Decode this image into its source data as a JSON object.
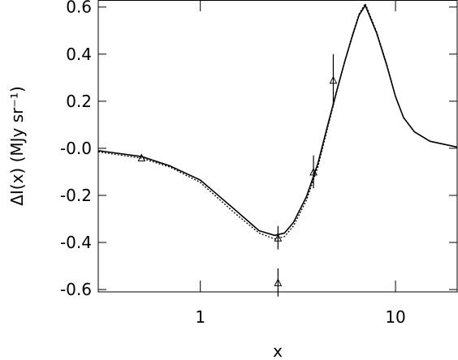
{
  "chart_data": {
    "type": "line",
    "xlabel": "x",
    "ylabel": "ΔI(x)  (MJy sr⁻¹)",
    "xscale": "log",
    "xlim": [
      0.3,
      20.7
    ],
    "ylim": [
      -0.61,
      0.63
    ],
    "xticks": [
      1,
      10
    ],
    "yticks": [
      0.6,
      0.4,
      0.2,
      {
        "value": 0,
        "label": "-0.0"
      },
      -0.2,
      -0.4,
      -0.6
    ],
    "color": "#000000",
    "series": [
      {
        "style": "solid",
        "x": [
          0.3,
          0.5,
          0.7,
          1,
          1.5,
          2,
          2.4,
          2.7,
          3,
          3.5,
          4,
          4.5,
          5,
          5.5,
          6,
          6.5,
          7,
          8,
          9,
          10,
          11,
          12.5,
          15,
          20.7
        ],
        "values": [
          -0.01,
          -0.035,
          -0.075,
          -0.135,
          -0.26,
          -0.35,
          -0.37,
          -0.36,
          -0.315,
          -0.205,
          -0.065,
          0.1,
          0.245,
          0.37,
          0.475,
          0.565,
          0.607,
          0.49,
          0.355,
          0.22,
          0.13,
          0.07,
          0.03,
          0.005
        ]
      },
      {
        "style": "dotted",
        "x": [
          0.3,
          0.5,
          0.7,
          1,
          1.5,
          2,
          2.4,
          2.7,
          3,
          3.5,
          4,
          4.5,
          5,
          5.5,
          6,
          6.5,
          7,
          8,
          9,
          10,
          11,
          12.5,
          15,
          20.7
        ],
        "values": [
          -0.015,
          -0.042,
          -0.08,
          -0.145,
          -0.275,
          -0.36,
          -0.385,
          -0.375,
          -0.33,
          -0.22,
          -0.08,
          0.09,
          0.24,
          0.37,
          0.48,
          0.57,
          0.615,
          0.495,
          0.36,
          0.22,
          0.13,
          0.07,
          0.03,
          0.005
        ]
      },
      {
        "style": "points",
        "x": [
          0.5,
          2.5,
          2.5,
          3.8,
          4.8
        ],
        "values": [
          -0.04,
          -0.38,
          -0.57,
          -0.1,
          0.29
        ],
        "errors": [
          0,
          0.05,
          0.06,
          0.07,
          0.11
        ]
      }
    ]
  }
}
